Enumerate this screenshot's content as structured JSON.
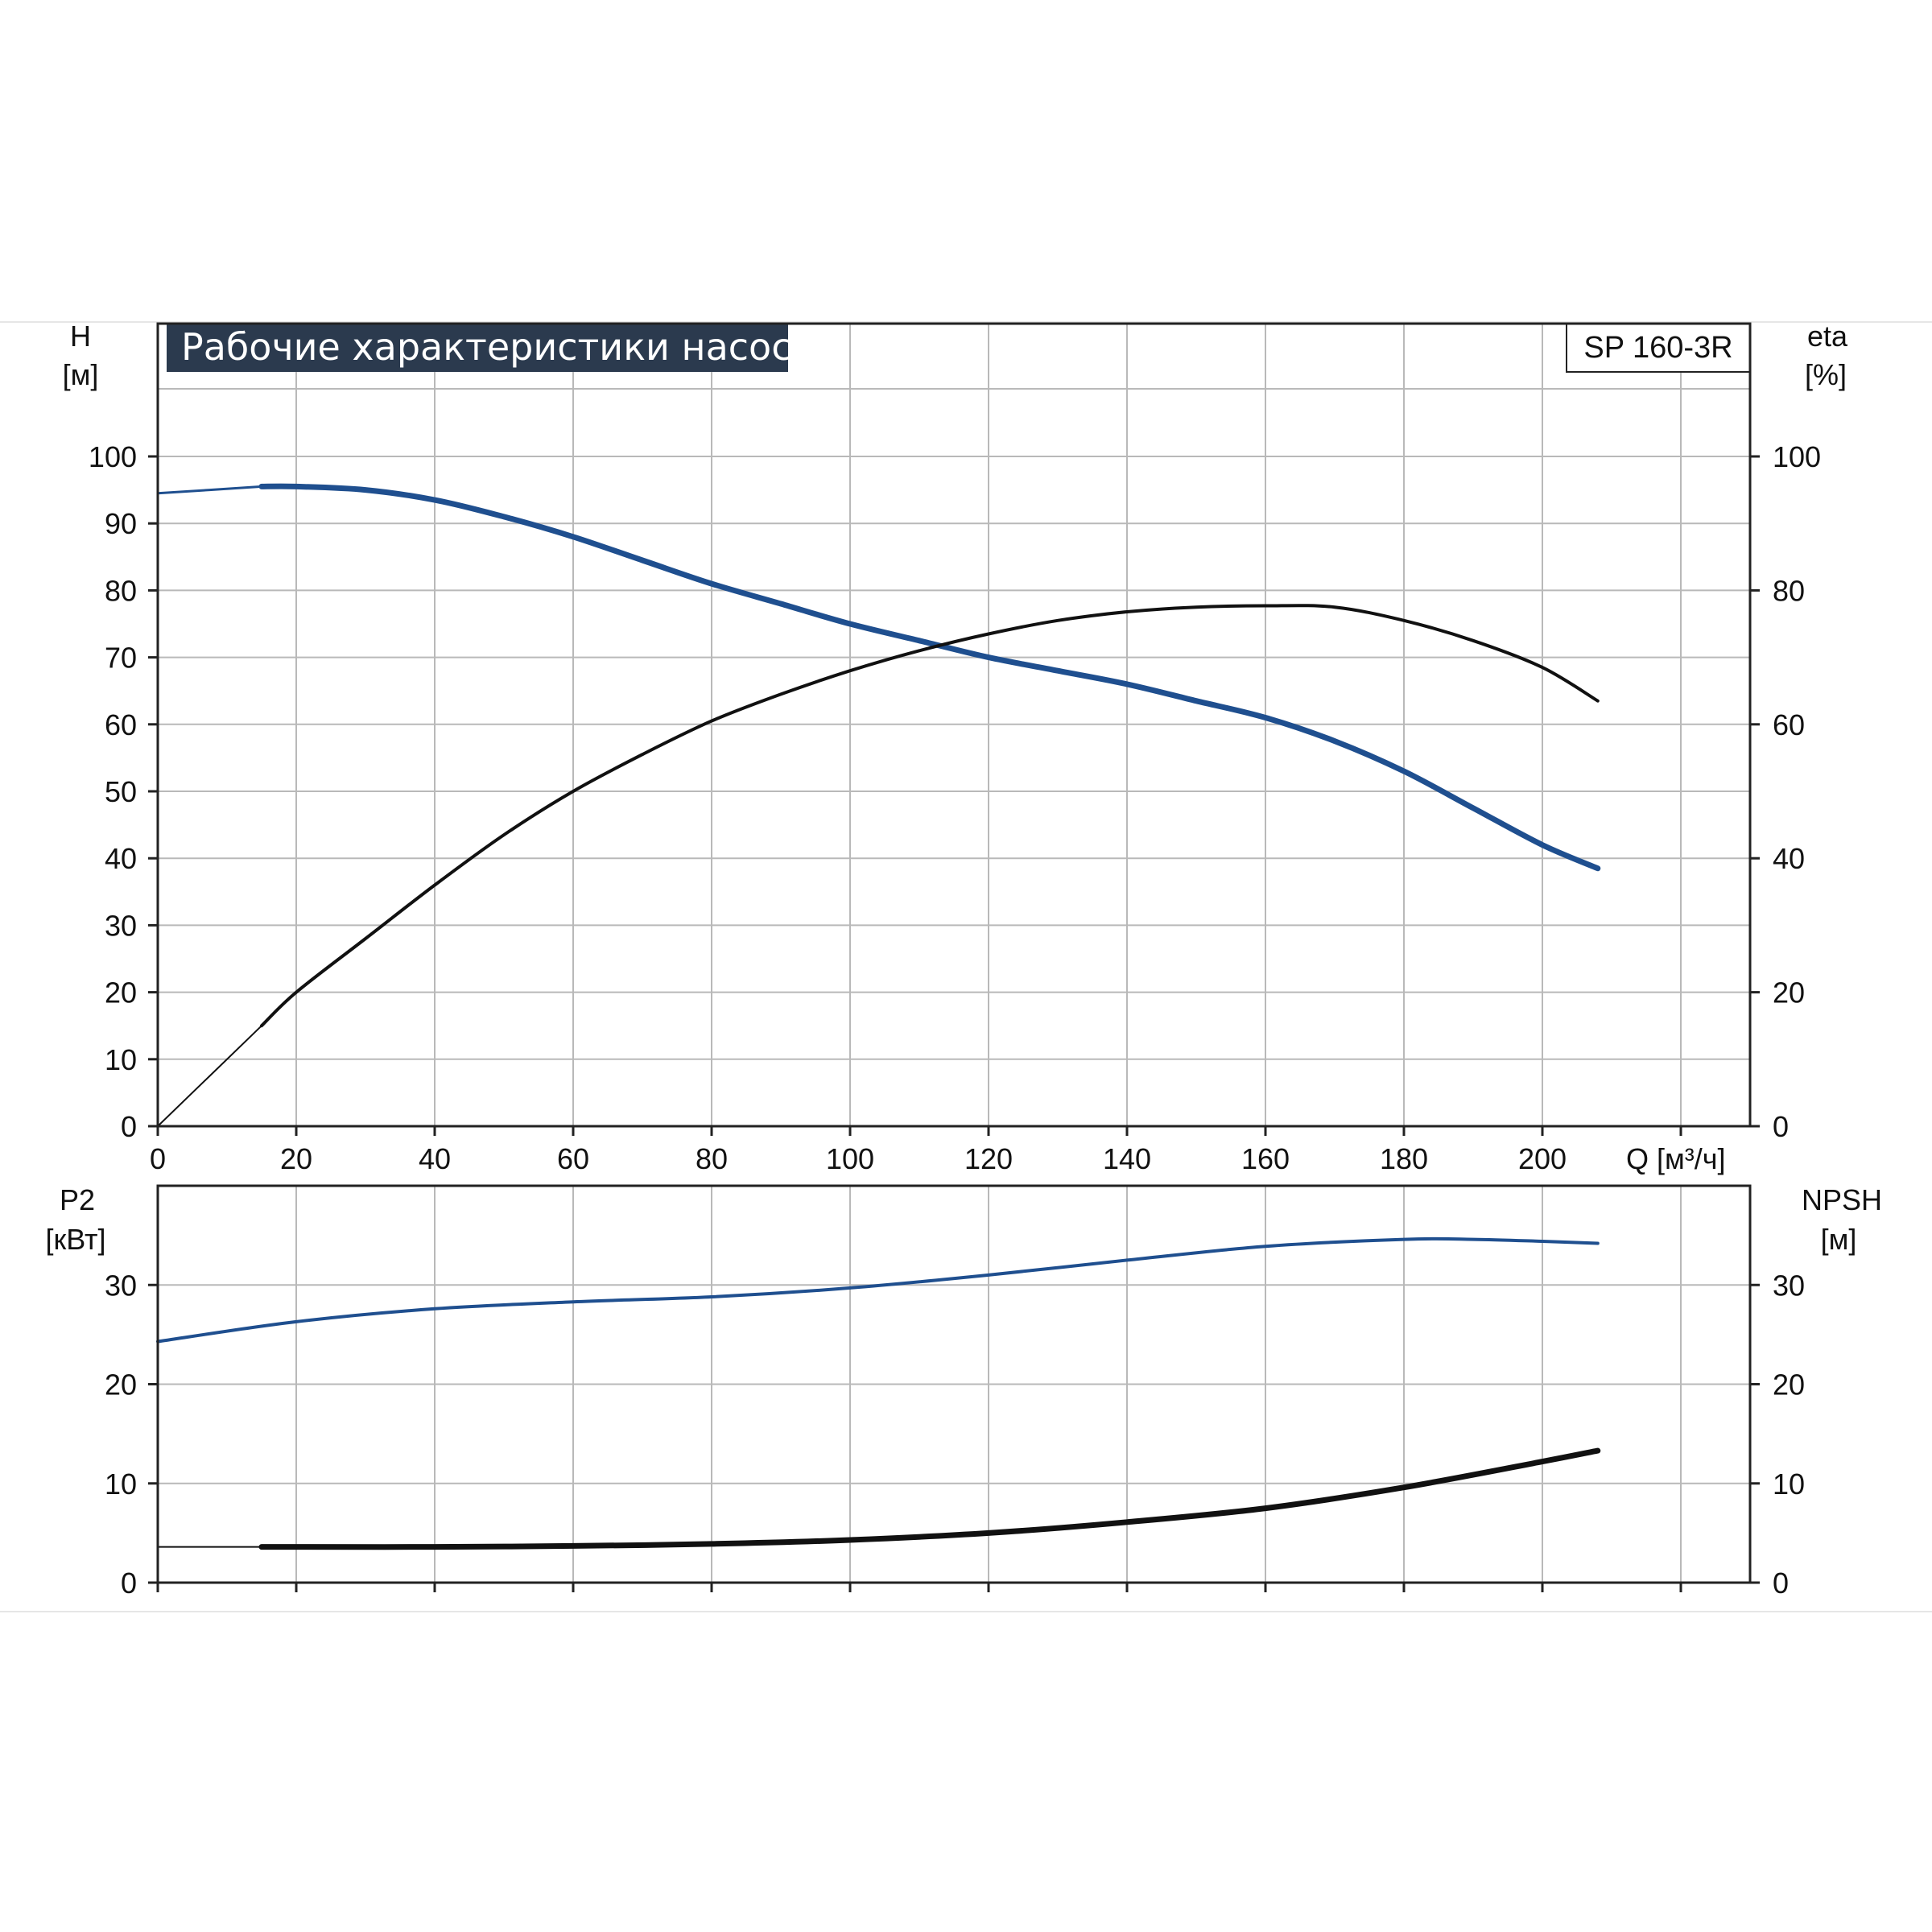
{
  "title": "Рабочие характеристики насоса",
  "model": "SP 160-3R",
  "colors": {
    "blue": "#1f4f8f",
    "black": "#111111",
    "title_bg": "#2b3a4e",
    "grid": "#b9b9b9"
  },
  "axes": {
    "h": {
      "label": "H",
      "unit": "[м]"
    },
    "eta": {
      "label": "eta",
      "unit": "[%]"
    },
    "q": {
      "label": "Q [м³/ч]"
    },
    "p2": {
      "label": "P2",
      "unit": "[кВт]"
    },
    "npsh": {
      "label": "NPSH",
      "unit": "[м]"
    }
  },
  "chart_data": [
    {
      "type": "line",
      "panel": "top",
      "xlim": [
        0,
        230
      ],
      "ylim": [
        0,
        100
      ],
      "y2lim": [
        0,
        200
      ],
      "xticks": [
        0,
        20,
        40,
        60,
        80,
        100,
        120,
        140,
        160,
        180,
        200
      ],
      "yticks": [
        0,
        10,
        20,
        30,
        40,
        50,
        60,
        70,
        80,
        90,
        100
      ],
      "y2ticks": [
        0,
        20,
        40,
        60,
        80,
        100
      ],
      "grid": true,
      "series": [
        {
          "axis": "H",
          "color": "#1f4f8f",
          "x": [
            0,
            15,
            20,
            30,
            40,
            50,
            60,
            70,
            80,
            90,
            100,
            110,
            120,
            130,
            140,
            150,
            160,
            170,
            180,
            190,
            200,
            208
          ],
          "values": [
            94.5,
            95.5,
            95.5,
            95,
            93.5,
            91,
            88,
            84.5,
            81,
            78,
            75,
            72.5,
            70,
            68,
            66,
            63.5,
            61,
            57.5,
            53,
            47.5,
            42,
            38.5
          ]
        },
        {
          "axis": "eta",
          "color": "#111111",
          "x": [
            0,
            15,
            20,
            30,
            40,
            50,
            60,
            70,
            80,
            90,
            100,
            110,
            120,
            130,
            140,
            150,
            160,
            170,
            180,
            190,
            200,
            208
          ],
          "values": [
            0,
            15,
            20,
            28,
            36,
            43.5,
            50,
            55.5,
            60.5,
            64.5,
            68,
            71,
            73.5,
            75.5,
            76.8,
            77.5,
            77.7,
            77.5,
            75.5,
            72.5,
            68.5,
            63.5
          ]
        }
      ]
    },
    {
      "type": "line",
      "panel": "bottom",
      "xlim": [
        0,
        230
      ],
      "ylim": [
        0,
        40
      ],
      "y2lim": [
        0,
        40
      ],
      "yticks": [
        0,
        10,
        20,
        30
      ],
      "y2ticks": [
        0,
        10,
        20,
        30
      ],
      "grid": true,
      "series": [
        {
          "axis": "P2",
          "color": "#1f4f8f",
          "x": [
            0,
            20,
            40,
            60,
            80,
            100,
            120,
            140,
            160,
            180,
            190,
            200,
            208
          ],
          "values": [
            24.3,
            26.3,
            27.6,
            28.3,
            28.8,
            29.7,
            31,
            32.5,
            33.9,
            34.6,
            34.6,
            34.4,
            34.2
          ]
        },
        {
          "axis": "NPSH",
          "color": "#111111",
          "x": [
            0,
            15,
            20,
            40,
            60,
            80,
            100,
            120,
            140,
            160,
            180,
            200,
            208
          ],
          "values": [
            3.6,
            3.6,
            3.6,
            3.6,
            3.7,
            3.9,
            4.3,
            5,
            6.1,
            7.5,
            9.6,
            12.2,
            13.3
          ]
        }
      ]
    }
  ]
}
